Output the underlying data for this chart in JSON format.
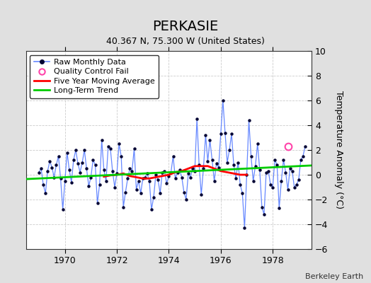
{
  "title": "PERKASIE",
  "subtitle": "40.367 N, 75.300 W (United States)",
  "ylabel": "Temperature Anomaly (°C)",
  "credit": "Berkeley Earth",
  "ylim": [
    -6,
    10
  ],
  "xlim": [
    1968.5,
    1979.5
  ],
  "xticks": [
    1970,
    1972,
    1974,
    1976,
    1978
  ],
  "yticks": [
    -6,
    -4,
    -2,
    0,
    2,
    4,
    6,
    8,
    10
  ],
  "fig_bg_color": "#e0e0e0",
  "plot_bg_color": "#ffffff",
  "raw_color": "#6688ff",
  "raw_marker_color": "#000033",
  "ma_color": "#ff0000",
  "trend_color": "#00cc00",
  "qc_fail_color": "#ff44aa",
  "raw_data_x": [
    1969.0,
    1969.083,
    1969.167,
    1969.25,
    1969.333,
    1969.417,
    1969.5,
    1969.583,
    1969.667,
    1969.75,
    1969.833,
    1969.917,
    1970.0,
    1970.083,
    1970.167,
    1970.25,
    1970.333,
    1970.417,
    1970.5,
    1970.583,
    1970.667,
    1970.75,
    1970.833,
    1970.917,
    1971.0,
    1971.083,
    1971.167,
    1971.25,
    1971.333,
    1971.417,
    1971.5,
    1971.583,
    1971.667,
    1971.75,
    1971.833,
    1971.917,
    1972.0,
    1972.083,
    1972.167,
    1972.25,
    1972.333,
    1972.417,
    1972.5,
    1972.583,
    1972.667,
    1972.75,
    1972.833,
    1972.917,
    1973.0,
    1973.083,
    1973.167,
    1973.25,
    1973.333,
    1973.417,
    1973.5,
    1973.583,
    1973.667,
    1973.75,
    1973.833,
    1973.917,
    1974.0,
    1974.083,
    1974.167,
    1974.25,
    1974.333,
    1974.417,
    1974.5,
    1974.583,
    1974.667,
    1974.75,
    1974.833,
    1974.917,
    1975.0,
    1975.083,
    1975.167,
    1975.25,
    1975.333,
    1975.417,
    1975.5,
    1975.583,
    1975.667,
    1975.75,
    1975.833,
    1975.917,
    1976.0,
    1976.083,
    1976.167,
    1976.25,
    1976.333,
    1976.417,
    1976.5,
    1976.583,
    1976.667,
    1976.75,
    1976.833,
    1976.917,
    1977.0,
    1977.083,
    1977.167,
    1977.25,
    1977.333,
    1977.417,
    1977.5,
    1977.583,
    1977.667,
    1977.75,
    1977.833,
    1977.917,
    1978.0,
    1978.083,
    1978.167,
    1978.25,
    1978.333,
    1978.417,
    1978.5,
    1978.583,
    1978.667,
    1978.75,
    1978.833,
    1978.917,
    1979.0,
    1979.083,
    1979.167,
    1979.25
  ],
  "raw_data_y": [
    0.2,
    0.5,
    -0.8,
    -1.5,
    0.3,
    1.1,
    0.6,
    -0.2,
    0.8,
    1.5,
    -0.3,
    -2.8,
    -0.5,
    1.8,
    0.4,
    -0.6,
    1.2,
    2.0,
    0.9,
    0.2,
    1.0,
    2.0,
    0.5,
    -0.9,
    -0.2,
    1.2,
    0.8,
    -2.3,
    -0.8,
    2.8,
    0.4,
    -0.5,
    2.3,
    2.1,
    0.3,
    -1.0,
    0.1,
    2.5,
    1.5,
    -2.6,
    -1.4,
    -0.3,
    0.5,
    0.3,
    2.1,
    -1.2,
    -0.5,
    -1.5,
    -0.3,
    -0.2,
    0.1,
    -0.5,
    -2.8,
    -1.8,
    0.0,
    -0.4,
    -1.5,
    0.2,
    0.3,
    -0.7,
    -0.1,
    0.2,
    1.5,
    -0.3,
    0.2,
    0.4,
    -0.2,
    -1.4,
    -2.0,
    0.1,
    -0.2,
    0.5,
    0.3,
    4.5,
    0.8,
    -1.6,
    0.5,
    3.2,
    1.1,
    2.8,
    1.2,
    -0.5,
    0.9,
    0.6,
    3.3,
    6.0,
    3.4,
    1.0,
    2.0,
    3.3,
    0.8,
    -0.3,
    1.0,
    -0.8,
    -1.5,
    -4.3,
    0.0,
    4.4,
    1.5,
    -0.5,
    0.7,
    2.5,
    0.4,
    -2.6,
    -3.2,
    0.2,
    0.3,
    -0.8,
    -1.0,
    1.2,
    0.8,
    -2.7,
    -0.5,
    1.2,
    0.2,
    -1.2,
    0.5,
    0.3,
    -1.0,
    -0.8,
    -0.4,
    1.2,
    1.5,
    2.3
  ],
  "ma_x": [
    1971.5,
    1971.75,
    1972.0,
    1972.25,
    1972.5,
    1972.75,
    1973.0,
    1973.25,
    1973.5,
    1973.75,
    1974.0,
    1974.25,
    1974.5,
    1974.75,
    1975.0,
    1975.25,
    1975.5,
    1975.75,
    1976.0,
    1976.25,
    1976.5,
    1976.75,
    1977.0
  ],
  "ma_y": [
    -0.15,
    -0.05,
    0.0,
    0.1,
    -0.1,
    -0.2,
    -0.3,
    -0.3,
    -0.2,
    -0.1,
    0.0,
    0.2,
    0.3,
    0.5,
    0.7,
    0.7,
    0.7,
    0.5,
    0.3,
    0.2,
    0.1,
    0.0,
    0.0
  ],
  "trend_x": [
    1968.5,
    1979.5
  ],
  "trend_y": [
    -0.35,
    0.75
  ],
  "qc_fail_x": [
    1978.583
  ],
  "qc_fail_y": [
    2.3
  ],
  "title_fontsize": 14,
  "subtitle_fontsize": 9,
  "tick_labelsize": 9,
  "ylabel_fontsize": 9,
  "legend_fontsize": 8,
  "credit_fontsize": 8
}
